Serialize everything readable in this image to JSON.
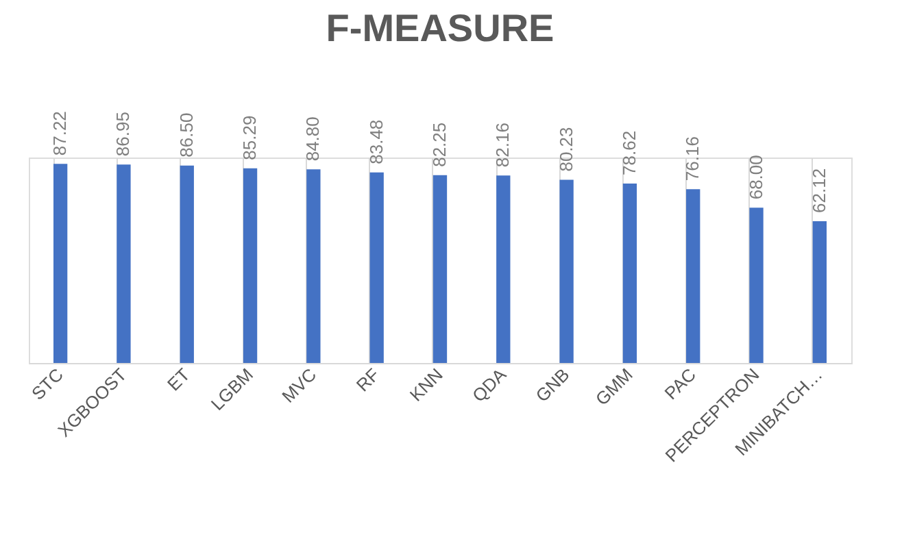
{
  "chart_data": {
    "type": "bar",
    "title": "F-MEASURE",
    "categories": [
      "STC",
      "XGBOOST",
      "ET",
      "LGBM",
      "MVC",
      "RF",
      "KNN",
      "QDA",
      "GNB",
      "GMM",
      "PAC",
      "PERCEPTRON",
      "MINIBATCH…"
    ],
    "values": [
      87.22,
      86.95,
      86.5,
      85.29,
      84.8,
      83.48,
      82.25,
      82.16,
      80.23,
      78.62,
      76.16,
      68.0,
      62.12
    ],
    "value_labels": [
      "87.22",
      "86.95",
      "86.50",
      "85.29",
      "84.80",
      "83.48",
      "82.25",
      "82.16",
      "80.23",
      "78.62",
      "76.16",
      "68.00",
      "62.12"
    ],
    "color": "#4472c4",
    "grid": "x"
  }
}
